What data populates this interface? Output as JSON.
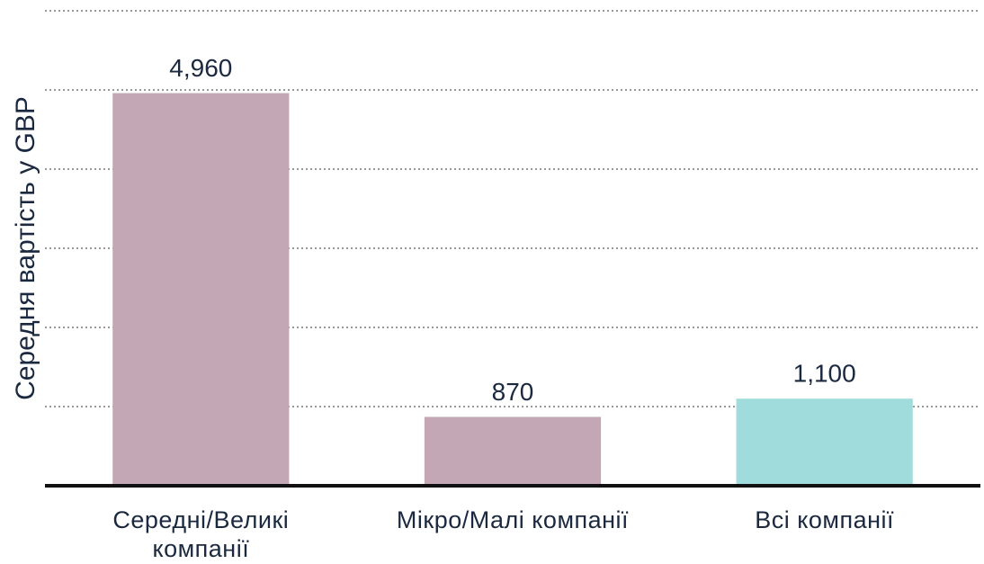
{
  "chart_data": {
    "type": "bar",
    "y_label": "Середня вартість у GBP",
    "categories": [
      "Середні/Великі компанії",
      "Мікро/Малі компанії",
      "Всі компанії"
    ],
    "values": [
      4960,
      870,
      1100
    ],
    "value_labels": [
      "4,960",
      "870",
      "1,100"
    ],
    "colors": [
      "#c4a7b4",
      "#c4a7b4",
      "#a0dcdc"
    ],
    "ylim": [
      0,
      6000
    ],
    "yticks": [
      0,
      1000,
      2000,
      3000,
      4000,
      5000,
      6000
    ],
    "grid": true
  }
}
